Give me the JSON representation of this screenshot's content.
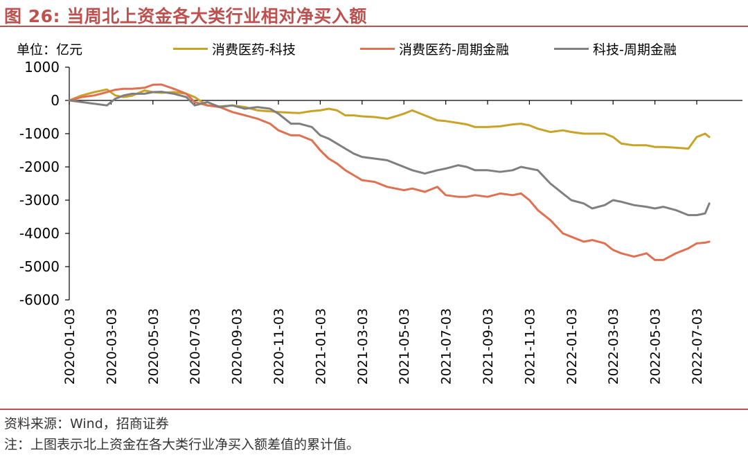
{
  "header": {
    "title": "图 26:  当周北上资金各大类行业相对净买入额"
  },
  "footer": {
    "source": "资料来源：Wind，招商证券",
    "note": "注：上图表示北上资金在各大类行业净买入额差值的累计值。"
  },
  "chart_data": {
    "type": "line",
    "unit_label": "单位：亿元",
    "ylim": [
      -6000,
      1000
    ],
    "yticks": [
      1000,
      0,
      -1000,
      -2000,
      -3000,
      -4000,
      -5000,
      -6000
    ],
    "ytick_labels": [
      "1000",
      "0",
      "-1000",
      "-2000",
      "-3000",
      "-4000",
      "-5000",
      "-6000"
    ],
    "x_tick_labels": [
      "2020-01-03",
      "2020-03-03",
      "2020-05-03",
      "2020-07-03",
      "2020-09-03",
      "2020-11-03",
      "2021-01-03",
      "2021-03-03",
      "2021-05-03",
      "2021-07-03",
      "2021-09-03",
      "2021-11-03",
      "2022-01-03",
      "2022-03-03",
      "2022-05-03",
      "2022-07-03"
    ],
    "x_range": [
      0,
      15.3
    ],
    "grid": false,
    "legend_position": "top",
    "series": [
      {
        "name": "消费医药-科技",
        "color": "#C9A227",
        "x": [
          0,
          0.3,
          0.6,
          0.9,
          1.1,
          1.3,
          1.5,
          1.8,
          2.0,
          2.2,
          2.5,
          2.8,
          3.0,
          3.3,
          3.6,
          3.9,
          4.2,
          4.5,
          4.8,
          5.0,
          5.3,
          5.5,
          5.8,
          6.0,
          6.2,
          6.4,
          6.6,
          6.8,
          7.0,
          7.3,
          7.6,
          7.8,
          8.0,
          8.2,
          8.5,
          8.8,
          9.0,
          9.3,
          9.5,
          9.7,
          10.0,
          10.3,
          10.6,
          10.8,
          11.0,
          11.2,
          11.5,
          11.8,
          12.0,
          12.3,
          12.5,
          12.8,
          13.0,
          13.2,
          13.5,
          13.8,
          14.0,
          14.2,
          14.5,
          14.8,
          15.0,
          15.2,
          15.3
        ],
        "values": [
          0,
          150,
          250,
          330,
          150,
          100,
          140,
          300,
          250,
          230,
          250,
          200,
          100,
          -150,
          -180,
          -150,
          -200,
          -300,
          -330,
          -350,
          -370,
          -380,
          -320,
          -300,
          -250,
          -300,
          -450,
          -450,
          -480,
          -500,
          -550,
          -480,
          -400,
          -300,
          -450,
          -600,
          -620,
          -680,
          -720,
          -800,
          -800,
          -780,
          -720,
          -700,
          -750,
          -850,
          -950,
          -900,
          -950,
          -1000,
          -1000,
          -1000,
          -1100,
          -1300,
          -1350,
          -1350,
          -1400,
          -1400,
          -1420,
          -1450,
          -1100,
          -1000,
          -1100
        ]
      },
      {
        "name": "消费医药-周期金融",
        "color": "#E07050",
        "x": [
          0,
          0.3,
          0.6,
          0.9,
          1.1,
          1.3,
          1.5,
          1.8,
          2.0,
          2.2,
          2.5,
          2.8,
          3.0,
          3.3,
          3.6,
          3.9,
          4.2,
          4.5,
          4.8,
          5.0,
          5.3,
          5.5,
          5.8,
          6.0,
          6.2,
          6.4,
          6.6,
          6.8,
          7.0,
          7.3,
          7.6,
          7.8,
          8.0,
          8.2,
          8.5,
          8.8,
          9.0,
          9.3,
          9.5,
          9.7,
          10.0,
          10.3,
          10.6,
          10.8,
          11.0,
          11.2,
          11.5,
          11.8,
          12.0,
          12.3,
          12.5,
          12.8,
          13.0,
          13.2,
          13.5,
          13.8,
          14.0,
          14.2,
          14.5,
          14.8,
          15.0,
          15.2,
          15.3
        ],
        "values": [
          0,
          100,
          150,
          250,
          320,
          350,
          350,
          380,
          470,
          480,
          350,
          200,
          -50,
          -150,
          -200,
          -350,
          -450,
          -550,
          -700,
          -900,
          -1050,
          -1050,
          -1200,
          -1500,
          -1750,
          -1900,
          -2100,
          -2250,
          -2400,
          -2450,
          -2600,
          -2650,
          -2700,
          -2650,
          -2750,
          -2600,
          -2850,
          -2900,
          -2900,
          -2850,
          -2900,
          -2800,
          -2850,
          -2800,
          -3000,
          -3300,
          -3600,
          -4000,
          -4100,
          -4250,
          -4200,
          -4300,
          -4500,
          -4600,
          -4700,
          -4600,
          -4800,
          -4800,
          -4600,
          -4450,
          -4300,
          -4280,
          -4250
        ]
      },
      {
        "name": "科技-周期金融",
        "color": "#7F7F7F",
        "x": [
          0,
          0.3,
          0.6,
          0.9,
          1.1,
          1.3,
          1.5,
          1.8,
          2.0,
          2.2,
          2.5,
          2.8,
          3.0,
          3.3,
          3.6,
          3.9,
          4.2,
          4.5,
          4.8,
          5.0,
          5.3,
          5.5,
          5.8,
          6.0,
          6.2,
          6.4,
          6.6,
          6.8,
          7.0,
          7.3,
          7.6,
          7.8,
          8.0,
          8.2,
          8.5,
          8.8,
          9.0,
          9.3,
          9.5,
          9.7,
          10.0,
          10.3,
          10.6,
          10.8,
          11.0,
          11.2,
          11.5,
          11.8,
          12.0,
          12.3,
          12.5,
          12.8,
          13.0,
          13.2,
          13.5,
          13.8,
          14.0,
          14.2,
          14.5,
          14.8,
          15.0,
          15.2,
          15.3
        ],
        "values": [
          0,
          -50,
          -100,
          -150,
          50,
          150,
          200,
          200,
          250,
          260,
          200,
          100,
          -150,
          -50,
          -200,
          -150,
          -250,
          -200,
          -250,
          -400,
          -700,
          -700,
          -800,
          -1050,
          -1150,
          -1300,
          -1450,
          -1600,
          -1700,
          -1750,
          -1800,
          -1900,
          -2000,
          -2100,
          -2200,
          -2100,
          -2050,
          -1950,
          -2000,
          -2100,
          -2100,
          -2150,
          -2100,
          -2000,
          -2050,
          -2100,
          -2500,
          -2800,
          -3000,
          -3100,
          -3250,
          -3150,
          -3000,
          -3050,
          -3150,
          -3200,
          -3250,
          -3200,
          -3300,
          -3450,
          -3450,
          -3400,
          -3100
        ]
      }
    ]
  }
}
